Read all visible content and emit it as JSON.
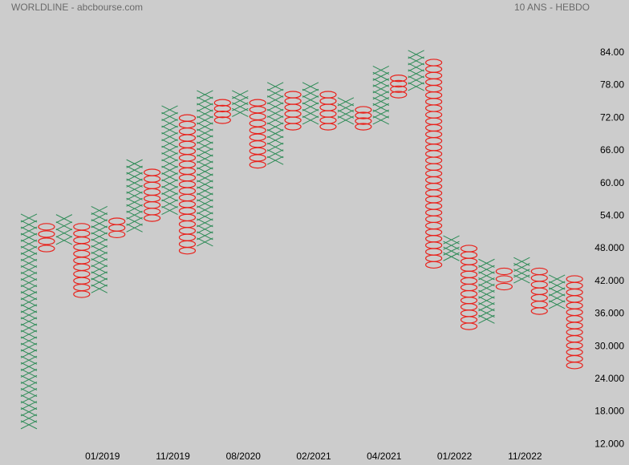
{
  "chart_data": {
    "type": "point-and-figure",
    "title": "WORLDLINE - abcbourse.com",
    "subtitle": "10 ANS - HEBDO",
    "box_size": 1.2,
    "x_color": "#2e8b57",
    "o_color": "#e8221c",
    "categories": [
      null,
      null,
      null,
      null,
      "01/2019",
      null,
      null,
      null,
      "11/2019",
      null,
      null,
      null,
      "08/2020",
      null,
      null,
      null,
      "02/2021",
      null,
      null,
      null,
      "04/2021",
      null,
      null,
      null,
      "01/2022",
      null,
      null,
      null,
      "11/2022",
      null,
      null,
      null
    ],
    "columns": [
      {
        "kind": "X",
        "high": 53.6,
        "low": 15.6
      },
      {
        "kind": "O",
        "high": 52.0,
        "low": 48.0
      },
      {
        "kind": "X",
        "high": 53.5,
        "low": 49.5
      },
      {
        "kind": "O",
        "high": 52.0,
        "low": 39.6
      },
      {
        "kind": "X",
        "high": 55.0,
        "low": 40.6
      },
      {
        "kind": "O",
        "high": 53.0,
        "low": 50.6
      },
      {
        "kind": "X",
        "high": 63.6,
        "low": 51.8
      },
      {
        "kind": "O",
        "high": 62.0,
        "low": 53.6
      },
      {
        "kind": "X",
        "high": 73.5,
        "low": 55.0
      },
      {
        "kind": "O",
        "high": 72.0,
        "low": 47.6
      },
      {
        "kind": "X",
        "high": 76.3,
        "low": 49.2
      },
      {
        "kind": "O",
        "high": 74.8,
        "low": 71.6
      },
      {
        "kind": "X",
        "high": 76.3,
        "low": 73.0
      },
      {
        "kind": "O",
        "high": 74.8,
        "low": 63.4
      },
      {
        "kind": "X",
        "high": 77.8,
        "low": 64.2
      },
      {
        "kind": "O",
        "high": 76.3,
        "low": 70.4
      },
      {
        "kind": "X",
        "high": 77.8,
        "low": 71.6
      },
      {
        "kind": "O",
        "high": 76.3,
        "low": 70.4
      },
      {
        "kind": "X",
        "high": 75.0,
        "low": 71.6
      },
      {
        "kind": "O",
        "high": 73.5,
        "low": 70.4
      },
      {
        "kind": "X",
        "high": 80.8,
        "low": 71.6
      },
      {
        "kind": "O",
        "high": 79.3,
        "low": 76.3
      },
      {
        "kind": "X",
        "high": 83.7,
        "low": 77.8
      },
      {
        "kind": "O",
        "high": 82.2,
        "low": 45.0
      },
      {
        "kind": "X",
        "high": 49.6,
        "low": 46.5
      },
      {
        "kind": "O",
        "high": 48.0,
        "low": 33.7
      },
      {
        "kind": "X",
        "high": 45.3,
        "low": 35.0
      },
      {
        "kind": "O",
        "high": 43.8,
        "low": 41.0
      },
      {
        "kind": "X",
        "high": 45.6,
        "low": 42.4
      },
      {
        "kind": "O",
        "high": 43.8,
        "low": 36.5
      },
      {
        "kind": "X",
        "high": 42.4,
        "low": 37.7
      },
      {
        "kind": "O",
        "high": 42.4,
        "low": 26.5
      }
    ],
    "ylim": [
      8.2,
      93.7
    ],
    "yticks": [
      {
        "value": 12,
        "label": "12.000"
      },
      {
        "value": 18,
        "label": "18.000"
      },
      {
        "value": 24,
        "label": "24.000"
      },
      {
        "value": 30,
        "label": "30.000"
      },
      {
        "value": 36,
        "label": "36.000"
      },
      {
        "value": 42,
        "label": "42.000"
      },
      {
        "value": 48,
        "label": "48.000"
      },
      {
        "value": 54,
        "label": "54.00"
      },
      {
        "value": 60,
        "label": "60.00"
      },
      {
        "value": 66,
        "label": "66.00"
      },
      {
        "value": 72,
        "label": "72.00"
      },
      {
        "value": 78,
        "label": "78.00"
      },
      {
        "value": 84,
        "label": "84.00"
      }
    ]
  }
}
